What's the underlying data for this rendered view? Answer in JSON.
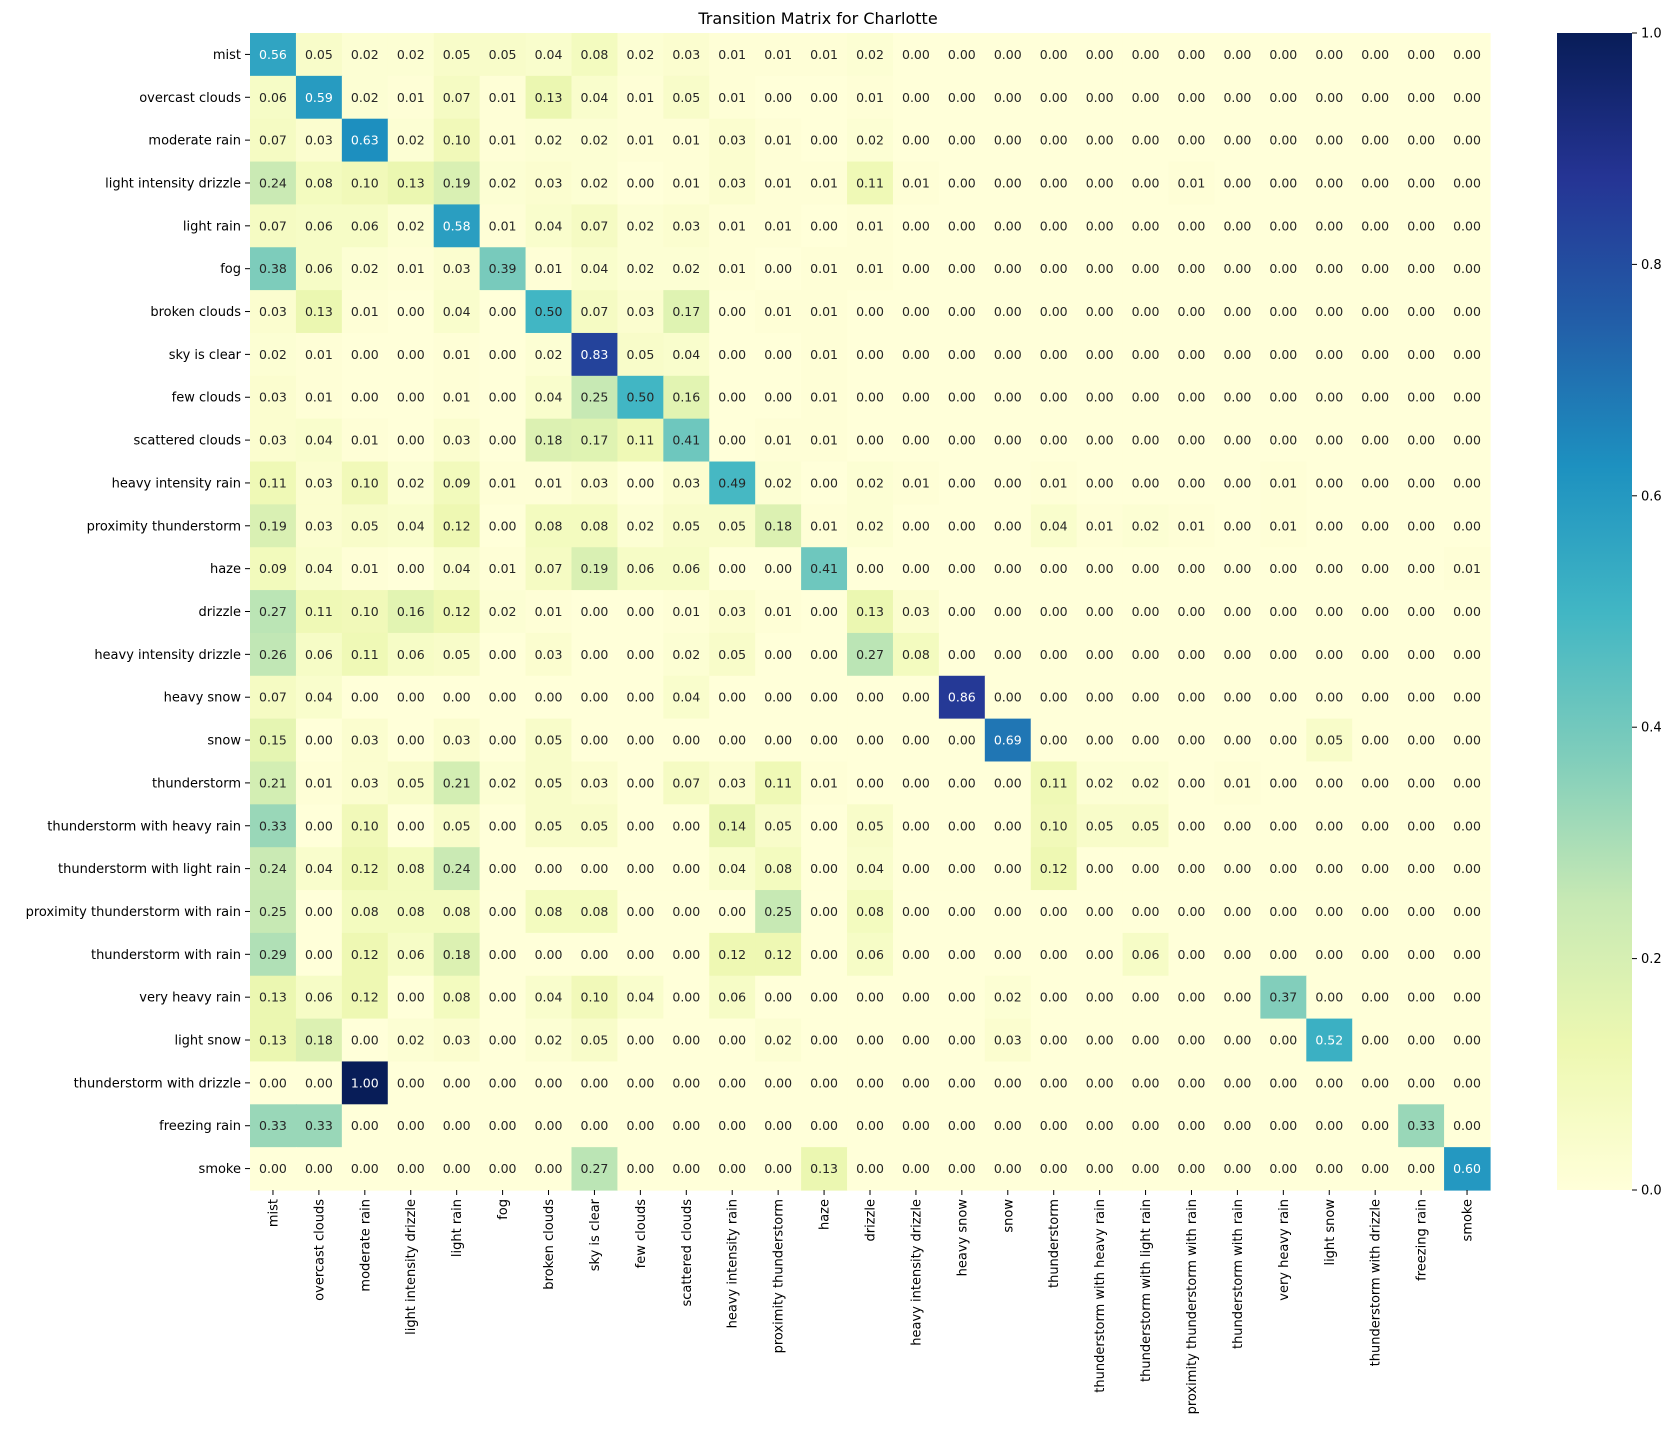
{
  "chart_data": {
    "type": "heatmap",
    "title": "Transition Matrix for Charlotte",
    "xlabel": "",
    "ylabel": "",
    "colormap": "YlGnBu",
    "value_range": [
      0,
      1
    ],
    "colorbar_ticks": [
      "0.0",
      "0.2",
      "0.4",
      "0.6",
      "0.8",
      "1.0"
    ],
    "categories": [
      "mist",
      "overcast clouds",
      "moderate rain",
      "light intensity drizzle",
      "light rain",
      "fog",
      "broken clouds",
      "sky is clear",
      "few clouds",
      "scattered clouds",
      "heavy intensity rain",
      "proximity thunderstorm",
      "haze",
      "drizzle",
      "heavy intensity drizzle",
      "heavy snow",
      "snow",
      "thunderstorm",
      "thunderstorm with heavy rain",
      "thunderstorm with light rain",
      "proximity thunderstorm with rain",
      "thunderstorm with rain",
      "very heavy rain",
      "light snow",
      "thunderstorm with drizzle",
      "freezing rain",
      "smoke"
    ],
    "values": [
      [
        "0.56",
        "0.05",
        "0.02",
        "0.02",
        "0.05",
        "0.05",
        "0.04",
        "0.08",
        "0.02",
        "0.03",
        "0.01",
        "0.01",
        "0.01",
        "0.02",
        "0.00",
        "0.00",
        "0.00",
        "0.00",
        "0.00",
        "0.00",
        "0.00",
        "0.00",
        "0.00",
        "0.00",
        "0.00",
        "0.00",
        "0.00"
      ],
      [
        "0.06",
        "0.59",
        "0.02",
        "0.01",
        "0.07",
        "0.01",
        "0.13",
        "0.04",
        "0.01",
        "0.05",
        "0.01",
        "0.00",
        "0.00",
        "0.01",
        "0.00",
        "0.00",
        "0.00",
        "0.00",
        "0.00",
        "0.00",
        "0.00",
        "0.00",
        "0.00",
        "0.00",
        "0.00",
        "0.00",
        "0.00"
      ],
      [
        "0.07",
        "0.03",
        "0.63",
        "0.02",
        "0.10",
        "0.01",
        "0.02",
        "0.02",
        "0.01",
        "0.01",
        "0.03",
        "0.01",
        "0.00",
        "0.02",
        "0.00",
        "0.00",
        "0.00",
        "0.00",
        "0.00",
        "0.00",
        "0.00",
        "0.00",
        "0.00",
        "0.00",
        "0.00",
        "0.00",
        "0.00"
      ],
      [
        "0.24",
        "0.08",
        "0.10",
        "0.13",
        "0.19",
        "0.02",
        "0.03",
        "0.02",
        "0.00",
        "0.01",
        "0.03",
        "0.01",
        "0.01",
        "0.11",
        "0.01",
        "0.00",
        "0.00",
        "0.00",
        "0.00",
        "0.00",
        "0.01",
        "0.00",
        "0.00",
        "0.00",
        "0.00",
        "0.00",
        "0.00"
      ],
      [
        "0.07",
        "0.06",
        "0.06",
        "0.02",
        "0.58",
        "0.01",
        "0.04",
        "0.07",
        "0.02",
        "0.03",
        "0.01",
        "0.01",
        "0.00",
        "0.01",
        "0.00",
        "0.00",
        "0.00",
        "0.00",
        "0.00",
        "0.00",
        "0.00",
        "0.00",
        "0.00",
        "0.00",
        "0.00",
        "0.00",
        "0.00"
      ],
      [
        "0.38",
        "0.06",
        "0.02",
        "0.01",
        "0.03",
        "0.39",
        "0.01",
        "0.04",
        "0.02",
        "0.02",
        "0.01",
        "0.00",
        "0.01",
        "0.01",
        "0.00",
        "0.00",
        "0.00",
        "0.00",
        "0.00",
        "0.00",
        "0.00",
        "0.00",
        "0.00",
        "0.00",
        "0.00",
        "0.00",
        "0.00"
      ],
      [
        "0.03",
        "0.13",
        "0.01",
        "0.00",
        "0.04",
        "0.00",
        "0.50",
        "0.07",
        "0.03",
        "0.17",
        "0.00",
        "0.01",
        "0.01",
        "0.00",
        "0.00",
        "0.00",
        "0.00",
        "0.00",
        "0.00",
        "0.00",
        "0.00",
        "0.00",
        "0.00",
        "0.00",
        "0.00",
        "0.00",
        "0.00"
      ],
      [
        "0.02",
        "0.01",
        "0.00",
        "0.00",
        "0.01",
        "0.00",
        "0.02",
        "0.83",
        "0.05",
        "0.04",
        "0.00",
        "0.00",
        "0.01",
        "0.00",
        "0.00",
        "0.00",
        "0.00",
        "0.00",
        "0.00",
        "0.00",
        "0.00",
        "0.00",
        "0.00",
        "0.00",
        "0.00",
        "0.00",
        "0.00"
      ],
      [
        "0.03",
        "0.01",
        "0.00",
        "0.00",
        "0.01",
        "0.00",
        "0.04",
        "0.25",
        "0.50",
        "0.16",
        "0.00",
        "0.00",
        "0.01",
        "0.00",
        "0.00",
        "0.00",
        "0.00",
        "0.00",
        "0.00",
        "0.00",
        "0.00",
        "0.00",
        "0.00",
        "0.00",
        "0.00",
        "0.00",
        "0.00"
      ],
      [
        "0.03",
        "0.04",
        "0.01",
        "0.00",
        "0.03",
        "0.00",
        "0.18",
        "0.17",
        "0.11",
        "0.41",
        "0.00",
        "0.01",
        "0.01",
        "0.00",
        "0.00",
        "0.00",
        "0.00",
        "0.00",
        "0.00",
        "0.00",
        "0.00",
        "0.00",
        "0.00",
        "0.00",
        "0.00",
        "0.00",
        "0.00"
      ],
      [
        "0.11",
        "0.03",
        "0.10",
        "0.02",
        "0.09",
        "0.01",
        "0.01",
        "0.03",
        "0.00",
        "0.03",
        "0.49",
        "0.02",
        "0.00",
        "0.02",
        "0.01",
        "0.00",
        "0.00",
        "0.01",
        "0.00",
        "0.00",
        "0.00",
        "0.00",
        "0.01",
        "0.00",
        "0.00",
        "0.00",
        "0.00"
      ],
      [
        "0.19",
        "0.03",
        "0.05",
        "0.04",
        "0.12",
        "0.00",
        "0.08",
        "0.08",
        "0.02",
        "0.05",
        "0.05",
        "0.18",
        "0.01",
        "0.02",
        "0.00",
        "0.00",
        "0.00",
        "0.04",
        "0.01",
        "0.02",
        "0.01",
        "0.00",
        "0.01",
        "0.00",
        "0.00",
        "0.00",
        "0.00"
      ],
      [
        "0.09",
        "0.04",
        "0.01",
        "0.00",
        "0.04",
        "0.01",
        "0.07",
        "0.19",
        "0.06",
        "0.06",
        "0.00",
        "0.00",
        "0.41",
        "0.00",
        "0.00",
        "0.00",
        "0.00",
        "0.00",
        "0.00",
        "0.00",
        "0.00",
        "0.00",
        "0.00",
        "0.00",
        "0.00",
        "0.00",
        "0.01"
      ],
      [
        "0.27",
        "0.11",
        "0.10",
        "0.16",
        "0.12",
        "0.02",
        "0.01",
        "0.00",
        "0.00",
        "0.01",
        "0.03",
        "0.01",
        "0.00",
        "0.13",
        "0.03",
        "0.00",
        "0.00",
        "0.00",
        "0.00",
        "0.00",
        "0.00",
        "0.00",
        "0.00",
        "0.00",
        "0.00",
        "0.00",
        "0.00"
      ],
      [
        "0.26",
        "0.06",
        "0.11",
        "0.06",
        "0.05",
        "0.00",
        "0.03",
        "0.00",
        "0.00",
        "0.02",
        "0.05",
        "0.00",
        "0.00",
        "0.27",
        "0.08",
        "0.00",
        "0.00",
        "0.00",
        "0.00",
        "0.00",
        "0.00",
        "0.00",
        "0.00",
        "0.00",
        "0.00",
        "0.00",
        "0.00"
      ],
      [
        "0.07",
        "0.04",
        "0.00",
        "0.00",
        "0.00",
        "0.00",
        "0.00",
        "0.00",
        "0.00",
        "0.04",
        "0.00",
        "0.00",
        "0.00",
        "0.00",
        "0.00",
        "0.86",
        "0.00",
        "0.00",
        "0.00",
        "0.00",
        "0.00",
        "0.00",
        "0.00",
        "0.00",
        "0.00",
        "0.00",
        "0.00"
      ],
      [
        "0.15",
        "0.00",
        "0.03",
        "0.00",
        "0.03",
        "0.00",
        "0.05",
        "0.00",
        "0.00",
        "0.00",
        "0.00",
        "0.00",
        "0.00",
        "0.00",
        "0.00",
        "0.00",
        "0.69",
        "0.00",
        "0.00",
        "0.00",
        "0.00",
        "0.00",
        "0.00",
        "0.05",
        "0.00",
        "0.00",
        "0.00"
      ],
      [
        "0.21",
        "0.01",
        "0.03",
        "0.05",
        "0.21",
        "0.02",
        "0.05",
        "0.03",
        "0.00",
        "0.07",
        "0.03",
        "0.11",
        "0.01",
        "0.00",
        "0.00",
        "0.00",
        "0.00",
        "0.11",
        "0.02",
        "0.02",
        "0.00",
        "0.01",
        "0.00",
        "0.00",
        "0.00",
        "0.00",
        "0.00"
      ],
      [
        "0.33",
        "0.00",
        "0.10",
        "0.00",
        "0.05",
        "0.00",
        "0.05",
        "0.05",
        "0.00",
        "0.00",
        "0.14",
        "0.05",
        "0.00",
        "0.05",
        "0.00",
        "0.00",
        "0.00",
        "0.10",
        "0.05",
        "0.05",
        "0.00",
        "0.00",
        "0.00",
        "0.00",
        "0.00",
        "0.00",
        "0.00"
      ],
      [
        "0.24",
        "0.04",
        "0.12",
        "0.08",
        "0.24",
        "0.00",
        "0.00",
        "0.00",
        "0.00",
        "0.00",
        "0.04",
        "0.08",
        "0.00",
        "0.04",
        "0.00",
        "0.00",
        "0.00",
        "0.12",
        "0.00",
        "0.00",
        "0.00",
        "0.00",
        "0.00",
        "0.00",
        "0.00",
        "0.00",
        "0.00"
      ],
      [
        "0.25",
        "0.00",
        "0.08",
        "0.08",
        "0.08",
        "0.00",
        "0.08",
        "0.08",
        "0.00",
        "0.00",
        "0.00",
        "0.25",
        "0.00",
        "0.08",
        "0.00",
        "0.00",
        "0.00",
        "0.00",
        "0.00",
        "0.00",
        "0.00",
        "0.00",
        "0.00",
        "0.00",
        "0.00",
        "0.00",
        "0.00"
      ],
      [
        "0.29",
        "0.00",
        "0.12",
        "0.06",
        "0.18",
        "0.00",
        "0.00",
        "0.00",
        "0.00",
        "0.00",
        "0.12",
        "0.12",
        "0.00",
        "0.06",
        "0.00",
        "0.00",
        "0.00",
        "0.00",
        "0.00",
        "0.06",
        "0.00",
        "0.00",
        "0.00",
        "0.00",
        "0.00",
        "0.00",
        "0.00"
      ],
      [
        "0.13",
        "0.06",
        "0.12",
        "0.00",
        "0.08",
        "0.00",
        "0.04",
        "0.10",
        "0.04",
        "0.00",
        "0.06",
        "0.00",
        "0.00",
        "0.00",
        "0.00",
        "0.00",
        "0.02",
        "0.00",
        "0.00",
        "0.00",
        "0.00",
        "0.00",
        "0.37",
        "0.00",
        "0.00",
        "0.00",
        "0.00"
      ],
      [
        "0.13",
        "0.18",
        "0.00",
        "0.02",
        "0.03",
        "0.00",
        "0.02",
        "0.05",
        "0.00",
        "0.00",
        "0.00",
        "0.02",
        "0.00",
        "0.00",
        "0.00",
        "0.00",
        "0.03",
        "0.00",
        "0.00",
        "0.00",
        "0.00",
        "0.00",
        "0.00",
        "0.52",
        "0.00",
        "0.00",
        "0.00"
      ],
      [
        "0.00",
        "0.00",
        "1.00",
        "0.00",
        "0.00",
        "0.00",
        "0.00",
        "0.00",
        "0.00",
        "0.00",
        "0.00",
        "0.00",
        "0.00",
        "0.00",
        "0.00",
        "0.00",
        "0.00",
        "0.00",
        "0.00",
        "0.00",
        "0.00",
        "0.00",
        "0.00",
        "0.00",
        "0.00",
        "0.00",
        "0.00"
      ],
      [
        "0.33",
        "0.33",
        "0.00",
        "0.00",
        "0.00",
        "0.00",
        "0.00",
        "0.00",
        "0.00",
        "0.00",
        "0.00",
        "0.00",
        "0.00",
        "0.00",
        "0.00",
        "0.00",
        "0.00",
        "0.00",
        "0.00",
        "0.00",
        "0.00",
        "0.00",
        "0.00",
        "0.00",
        "0.00",
        "0.33",
        "0.00"
      ],
      [
        "0.00",
        "0.00",
        "0.00",
        "0.00",
        "0.00",
        "0.00",
        "0.00",
        "0.27",
        "0.00",
        "0.00",
        "0.00",
        "0.00",
        "0.13",
        "0.00",
        "0.00",
        "0.00",
        "0.00",
        "0.00",
        "0.00",
        "0.00",
        "0.00",
        "0.00",
        "0.00",
        "0.00",
        "0.00",
        "0.00",
        "0.60"
      ]
    ]
  }
}
